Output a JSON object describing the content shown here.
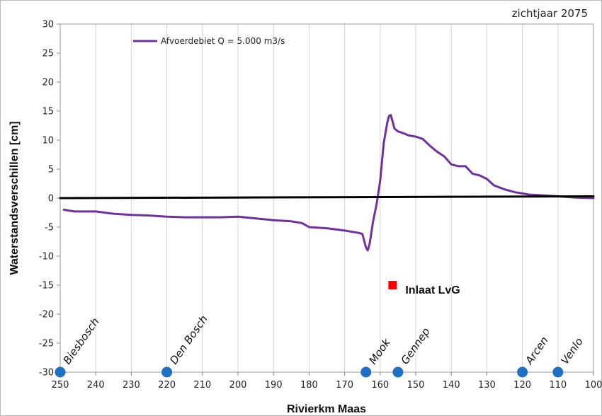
{
  "chart_data": {
    "type": "line",
    "corner_label": "zichtjaar 2075",
    "xlabel": "Rivierkm Maas",
    "ylabel": "Waterstandsverschillen [cm]",
    "xlim": [
      250,
      100
    ],
    "ylim": [
      -30,
      30
    ],
    "x_ticks": [
      250,
      240,
      230,
      220,
      210,
      200,
      190,
      180,
      170,
      160,
      150,
      140,
      130,
      120,
      110,
      100
    ],
    "y_ticks": [
      30,
      25,
      20,
      15,
      10,
      5,
      0,
      -5,
      -10,
      -15,
      -20,
      -25,
      -30
    ],
    "grid": "vertical",
    "legend_position": "top-left",
    "series": [
      {
        "name": "Afvoerdebiet Q = 5.000 m3/s",
        "color": "#7030a0",
        "x": [
          249,
          246,
          240,
          235,
          230,
          225,
          220,
          215,
          210,
          205,
          200,
          195,
          190,
          185,
          182,
          180,
          175,
          170,
          166,
          165,
          164,
          163.5,
          163,
          162.5,
          162,
          161,
          160,
          159,
          158,
          157.5,
          157,
          156,
          155,
          154,
          152,
          150,
          148,
          146,
          144,
          142,
          140,
          138,
          136,
          134,
          132,
          130,
          128,
          125,
          122,
          120,
          118,
          115,
          110,
          105,
          100
        ],
        "values": [
          -2,
          -2.3,
          -2.3,
          -2.7,
          -2.9,
          -3.0,
          -3.2,
          -3.3,
          -3.3,
          -3.3,
          -3.2,
          -3.5,
          -3.8,
          -4.0,
          -4.3,
          -5.0,
          -5.2,
          -5.6,
          -6.0,
          -6.2,
          -8.5,
          -9.0,
          -8.0,
          -6.0,
          -4.0,
          -1.0,
          3.0,
          9.5,
          13.0,
          14.2,
          14.3,
          12.0,
          11.5,
          11.3,
          10.8,
          10.6,
          10.2,
          9.0,
          8.0,
          7.2,
          5.8,
          5.5,
          5.5,
          4.2,
          3.9,
          3.3,
          2.2,
          1.5,
          1.0,
          0.8,
          0.6,
          0.5,
          0.3,
          0.1,
          0.0
        ]
      },
      {
        "name": "",
        "color": "#000000",
        "x": [
          250,
          100
        ],
        "values": [
          0,
          0.3
        ]
      }
    ],
    "locations": [
      {
        "name": "Biesbosch",
        "km": 250
      },
      {
        "name": "Den Bosch",
        "km": 220
      },
      {
        "name": "Mook",
        "km": 164
      },
      {
        "name": "Gennep",
        "km": 155
      },
      {
        "name": "Arcen",
        "km": 120
      },
      {
        "name": "Venlo",
        "km": 110
      }
    ],
    "location_y": -30,
    "location_color": "#1f6fc4",
    "marker": {
      "label": "Inlaat LvG",
      "km": 156.5,
      "value": -15,
      "color": "#ff0000"
    }
  }
}
